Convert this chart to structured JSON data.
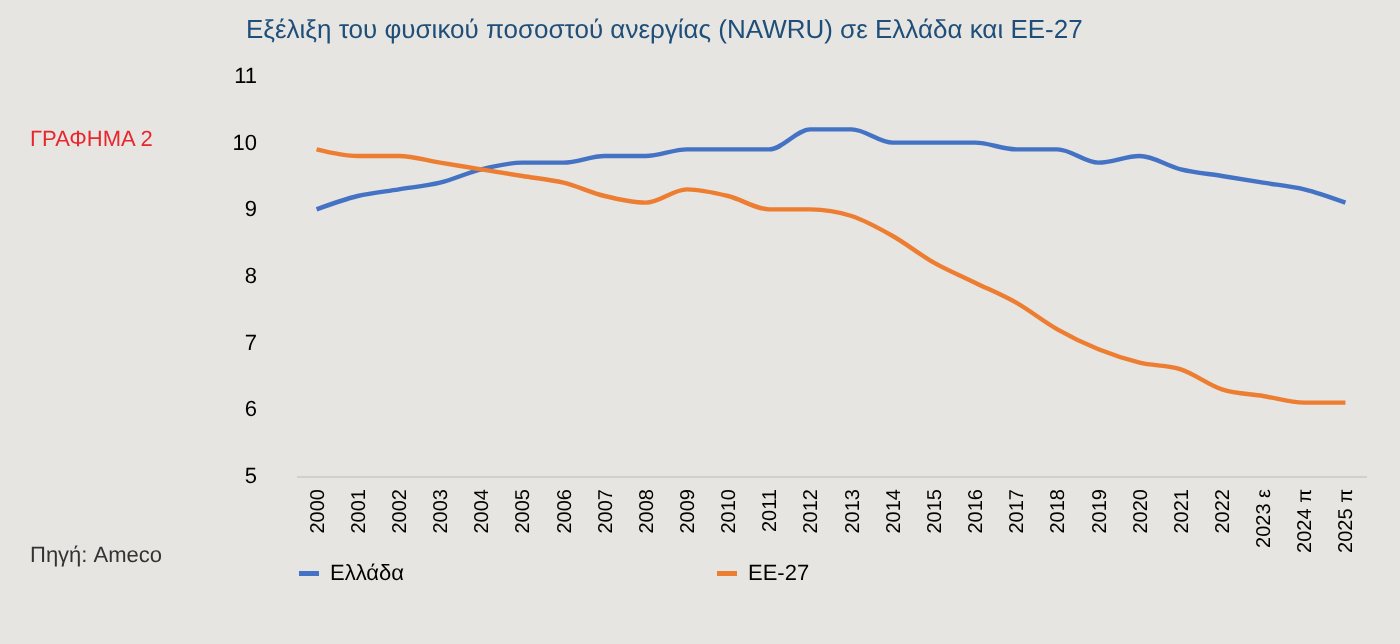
{
  "chart_data": {
    "type": "line",
    "title": "Εξέλιξη του φυσικού ποσοστού ανεργίας (NAWRU) σε Ελλάδα και ΕΕ-27",
    "categories": [
      "2000",
      "2001",
      "2002",
      "2003",
      "2004",
      "2005",
      "2006",
      "2007",
      "2008",
      "2009",
      "2010",
      "2011",
      "2012",
      "2013",
      "2014",
      "2015",
      "2016",
      "2017",
      "2018",
      "2019",
      "2020",
      "2021",
      "2022",
      "2023 ε",
      "2024 π",
      "2025 π"
    ],
    "series": [
      {
        "name": "Ελλάδα",
        "color": "#4472c4",
        "values": [
          9.0,
          9.2,
          9.3,
          9.4,
          9.6,
          9.7,
          9.7,
          9.8,
          9.8,
          9.9,
          9.9,
          9.9,
          10.2,
          10.2,
          10.0,
          10.0,
          10.0,
          9.9,
          9.9,
          9.7,
          9.8,
          9.6,
          9.5,
          9.4,
          9.3,
          9.1
        ]
      },
      {
        "name": "ΕΕ-27",
        "color": "#ed7d31",
        "values": [
          9.9,
          9.8,
          9.8,
          9.7,
          9.6,
          9.5,
          9.4,
          9.2,
          9.1,
          9.3,
          9.2,
          9.0,
          9.0,
          8.9,
          8.6,
          8.2,
          7.9,
          7.6,
          7.2,
          6.9,
          6.7,
          6.6,
          6.3,
          6.2,
          6.1,
          6.1
        ]
      }
    ],
    "ylim": [
      5,
      11
    ],
    "yticks": [
      5,
      6,
      7,
      8,
      9,
      10,
      11
    ],
    "grid": false,
    "legend": "bottom",
    "annotations": [
      "ΓΡΑΦΗΜΑ 2",
      "Πηγή: Ameco"
    ]
  }
}
